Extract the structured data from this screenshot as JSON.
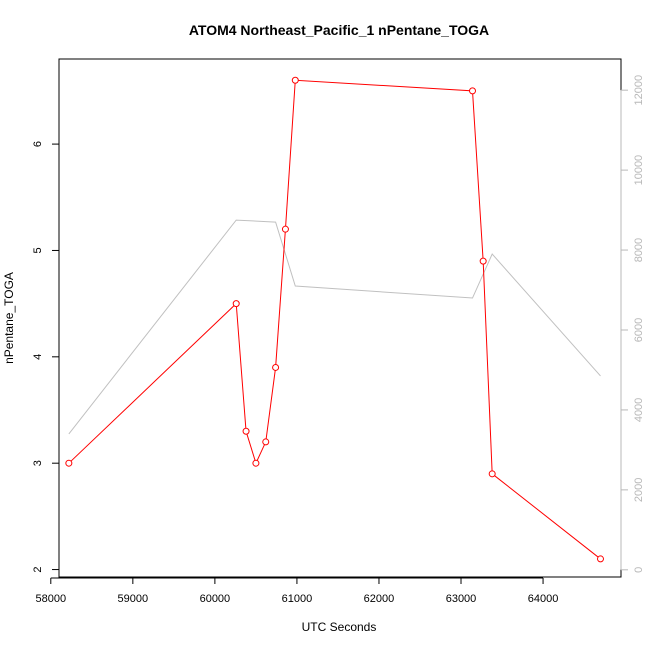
{
  "chart_data": {
    "type": "line",
    "title": "ATOM4 Northeast_Pacific_1 nPentane_TOGA",
    "xlabel": "UTC Seconds",
    "ylabel": "nPentane_TOGA",
    "xlim": [
      58100,
      64950
    ],
    "ylim": [
      1.93,
      6.8
    ],
    "y2lim": [
      -180,
      12780
    ],
    "x_ticks": [
      58000,
      59000,
      60000,
      61000,
      62000,
      63000,
      64000
    ],
    "y_ticks": [
      2,
      3,
      4,
      5,
      6
    ],
    "y2_ticks": [
      0,
      2000,
      4000,
      6000,
      8000,
      10000,
      12000
    ],
    "grid": false,
    "series": [
      {
        "axis": "left",
        "color": "#ff0000",
        "marker": "open-circle",
        "x": [
          58220,
          60260,
          60380,
          60500,
          60620,
          60740,
          60860,
          60980,
          63140,
          63270,
          63380,
          64700
        ],
        "y": [
          3.0,
          4.5,
          3.3,
          3.0,
          3.2,
          3.9,
          5.2,
          6.6,
          6.5,
          4.9,
          2.9,
          2.1
        ]
      },
      {
        "axis": "right",
        "color": "#c0c0c0",
        "marker": "none",
        "x": [
          58220,
          60260,
          60740,
          60980,
          63140,
          63380,
          64700
        ],
        "y": [
          3400,
          8750,
          8700,
          7100,
          6800,
          7900,
          4850
        ]
      }
    ]
  }
}
